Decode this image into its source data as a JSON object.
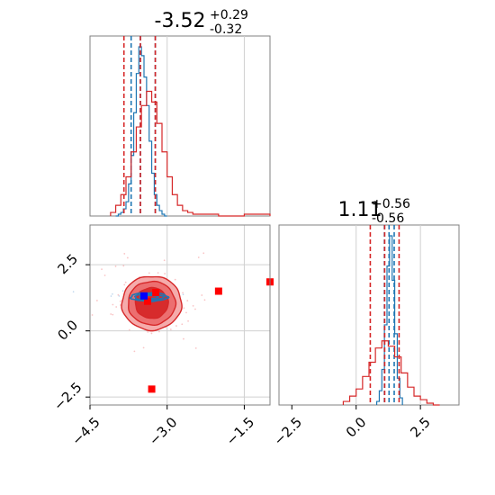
{
  "chart_data": [
    {
      "type": "histogram",
      "panel": "marginal-x",
      "title_value": "-3.52",
      "title_plus": "+0.29",
      "title_minus": "-0.32",
      "xlim": [
        -4.5,
        -1.0
      ],
      "grid": true,
      "series": [
        {
          "color": "#1f77b4",
          "bin_edges": [
            -4.0,
            -3.95,
            -3.9,
            -3.85,
            -3.8,
            -3.75,
            -3.7,
            -3.65,
            -3.6,
            -3.55,
            -3.5,
            -3.45,
            -3.4,
            -3.35,
            -3.3,
            -3.25,
            -3.2,
            -3.15,
            -3.1,
            -3.05,
            -3.0
          ],
          "counts": [
            0,
            1,
            2,
            4,
            8,
            18,
            34,
            58,
            80,
            95,
            90,
            78,
            62,
            42,
            24,
            12,
            6,
            3,
            1,
            0
          ],
          "quantiles": [
            -3.7,
            -3.52,
            -3.23
          ]
        },
        {
          "color": "#d62728",
          "bin_edges": [
            -4.1,
            -4.0,
            -3.9,
            -3.8,
            -3.7,
            -3.6,
            -3.5,
            -3.4,
            -3.3,
            -3.2,
            -3.1,
            -3.0,
            -2.9,
            -2.8,
            -2.7,
            -2.6,
            -2.5,
            -2.4,
            -2.3,
            -2.2,
            -2.1,
            -2.0,
            -1.5,
            -1.0
          ],
          "counts": [
            2,
            6,
            12,
            22,
            36,
            50,
            62,
            70,
            64,
            52,
            36,
            22,
            12,
            6,
            3,
            2,
            1,
            1,
            1,
            1,
            1,
            0,
            1
          ],
          "quantiles": [
            -3.84,
            -3.52,
            -3.23
          ]
        }
      ]
    },
    {
      "type": "histogram",
      "panel": "marginal-y",
      "title_value": "1.11",
      "title_plus": "+0.56",
      "title_minus": "-0.56",
      "xlim": [
        -3.0,
        4.0
      ],
      "xticks": [
        "−2.5",
        "0.0",
        "2.5"
      ],
      "grid": true,
      "series": [
        {
          "color": "#1f77b4",
          "bin_edges": [
            0.8,
            0.9,
            1.0,
            1.1,
            1.2,
            1.3,
            1.4,
            1.5,
            1.6,
            1.7,
            1.8
          ],
          "counts": [
            2,
            8,
            20,
            45,
            78,
            95,
            70,
            40,
            15,
            4
          ],
          "quantiles": [
            1.1,
            1.28,
            1.48
          ]
        },
        {
          "color": "#d62728",
          "bin_edges": [
            -0.5,
            -0.25,
            0.0,
            0.25,
            0.5,
            0.75,
            1.0,
            1.25,
            1.5,
            1.75,
            2.0,
            2.25,
            2.5,
            2.75,
            3.0,
            3.25
          ],
          "counts": [
            2,
            5,
            9,
            16,
            24,
            32,
            36,
            33,
            27,
            18,
            10,
            5,
            3,
            1,
            0
          ],
          "quantiles": [
            0.55,
            1.11,
            1.67
          ]
        }
      ]
    },
    {
      "type": "contour",
      "panel": "joint",
      "xlim": [
        -4.5,
        -1.0
      ],
      "ylim": [
        -2.8,
        4.0
      ],
      "xticks": [
        "−4.5",
        "−3.0",
        "−1.5"
      ],
      "yticks": [
        "−2.5",
        "0.0",
        "2.5"
      ],
      "grid": true,
      "blue_contours": {
        "color": "#1f77b4",
        "center": [
          -3.35,
          1.28
        ],
        "sigmas": [
          [
            0.36,
            0.16
          ],
          [
            0.28,
            0.11
          ],
          [
            0.18,
            0.06
          ]
        ]
      },
      "red_contours": {
        "color": "#d62728",
        "center": [
          -3.3,
          1.05
        ],
        "sigmas": [
          [
            0.58,
            1.02
          ],
          [
            0.46,
            0.82
          ],
          [
            0.32,
            0.58
          ]
        ]
      },
      "markers": [
        {
          "color": "#ff0000",
          "x": -3.3,
          "y": -2.2
        },
        {
          "color": "#ff0000",
          "x": -2.0,
          "y": 1.5
        },
        {
          "color": "#ff0000",
          "x": -1.0,
          "y": 1.85
        },
        {
          "color": "#ff0000",
          "x": -3.22,
          "y": 1.45
        },
        {
          "color": "#ff0000",
          "x": -3.38,
          "y": 1.12
        },
        {
          "color": "#0000ff",
          "x": -3.45,
          "y": 1.32
        }
      ]
    }
  ]
}
